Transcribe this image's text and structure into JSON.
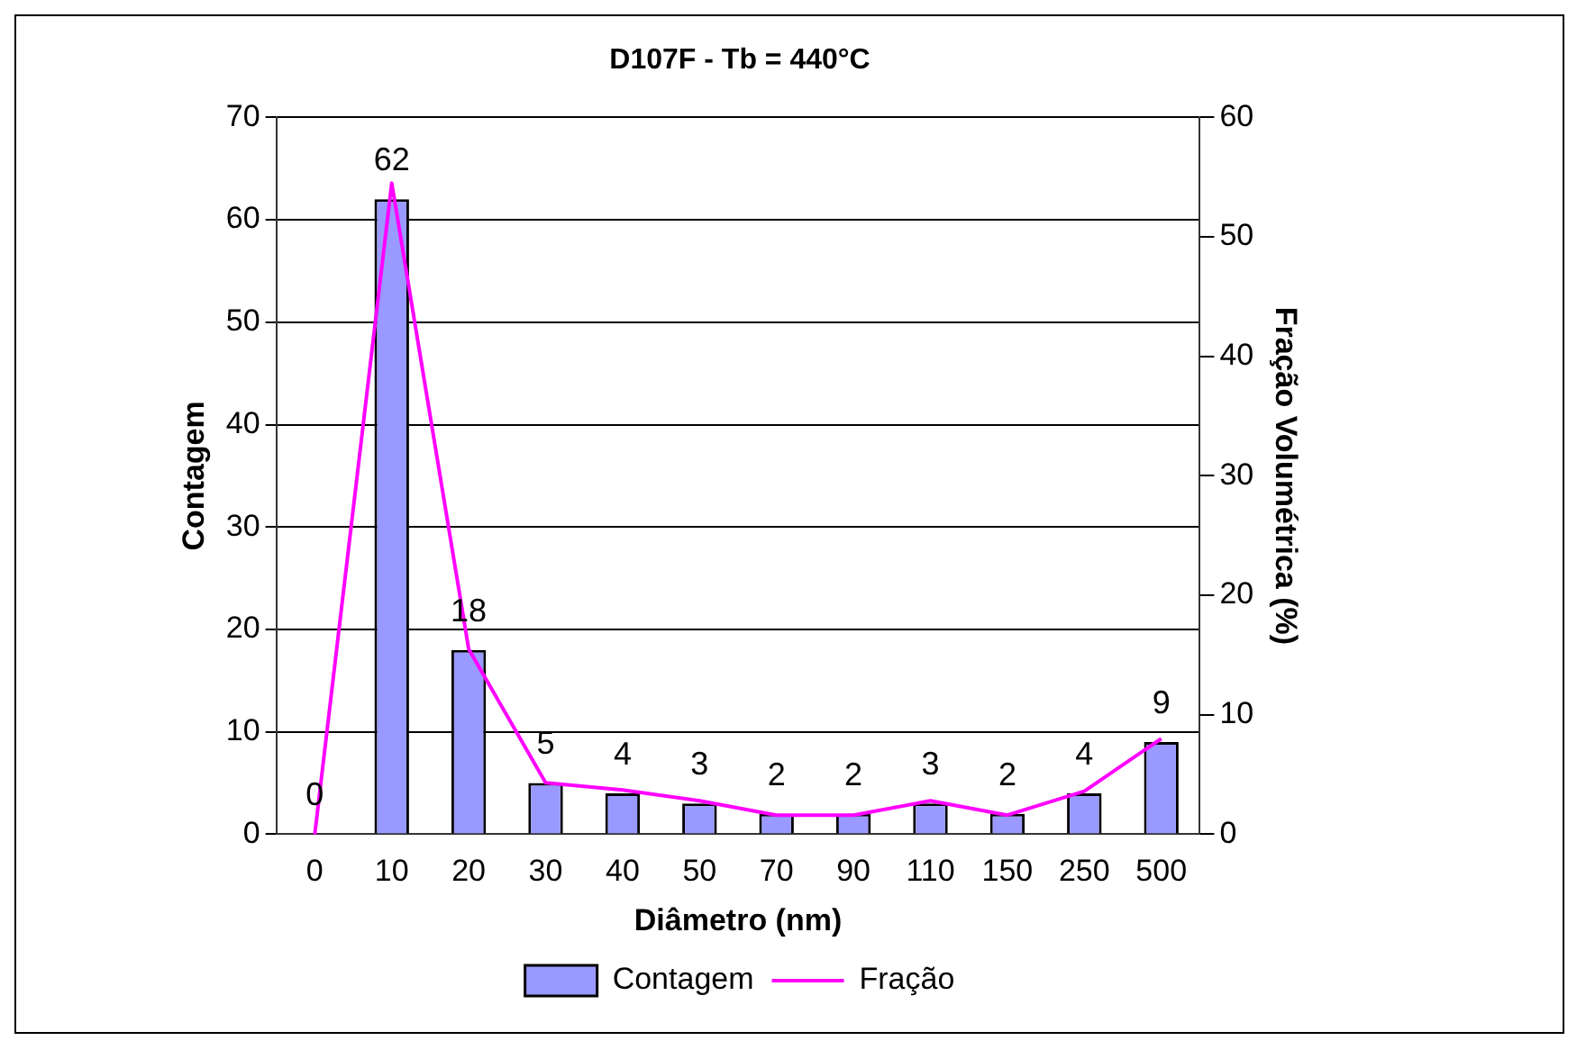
{
  "chart_data": {
    "type": "bar",
    "title": "D107F - Tb = 440°C",
    "xlabel": "Diâmetro (nm)",
    "ylabel": "Contagem",
    "y2label": "Fração Volumétrica (%)",
    "categories": [
      "0",
      "10",
      "20",
      "30",
      "40",
      "50",
      "70",
      "90",
      "110",
      "150",
      "250",
      "500"
    ],
    "series": [
      {
        "name": "Contagem",
        "color": "#9999ff",
        "values": [
          0,
          62,
          18,
          5,
          4,
          3,
          2,
          2,
          3,
          2,
          4,
          9
        ],
        "value_labels": [
          "0",
          "62",
          "18",
          "5",
          "4",
          "3",
          "2",
          "2",
          "3",
          "2",
          "4",
          "9"
        ]
      },
      {
        "name": "Fração",
        "type": "line",
        "axis": "y2",
        "color": "#ff00ff",
        "values": [
          0,
          54.5,
          15.5,
          4.3,
          3.7,
          2.8,
          1.6,
          1.6,
          2.8,
          1.6,
          3.6,
          8
        ]
      }
    ],
    "ylim": [
      0,
      70
    ],
    "yticks": [
      0,
      10,
      20,
      30,
      40,
      50,
      60,
      70
    ],
    "y2lim": [
      0,
      60
    ],
    "y2ticks": [
      0,
      10,
      20,
      30,
      40,
      50,
      60
    ],
    "grid": "y",
    "legend": "bottom",
    "marker": "none"
  }
}
